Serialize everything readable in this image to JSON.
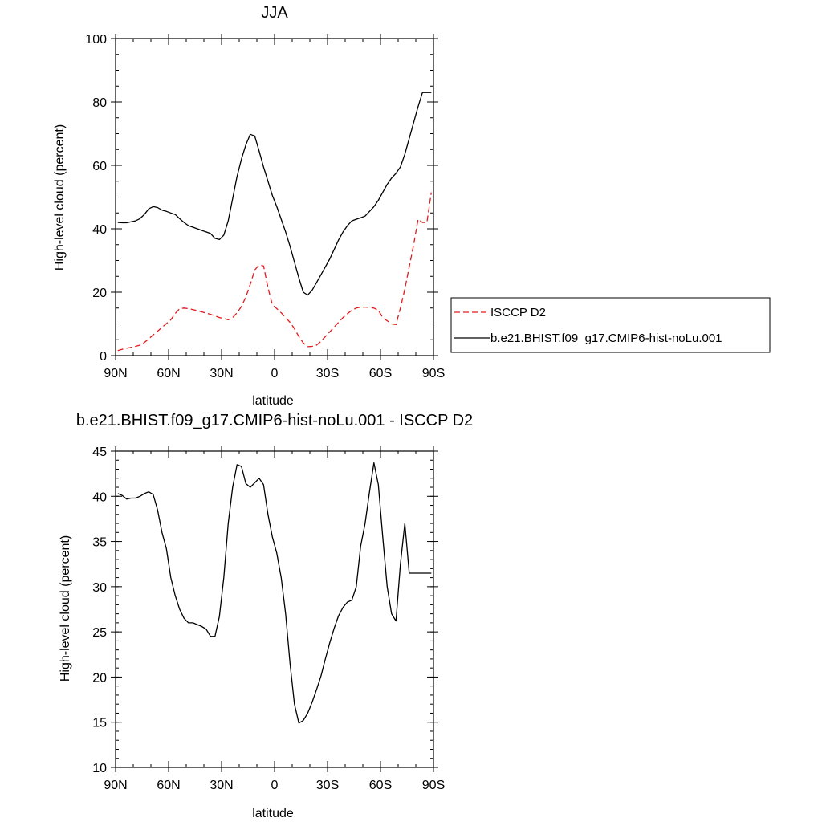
{
  "chart_data": [
    {
      "type": "line",
      "title": "JJA",
      "xlabel": "latitude",
      "ylabel": "High-level cloud (percent)",
      "xlim": [
        90,
        -90
      ],
      "ylim": [
        0,
        100
      ],
      "x_ticks": [
        90,
        60,
        30,
        0,
        -30,
        -60,
        -90
      ],
      "x_tick_labels": [
        "90N",
        "60N",
        "30N",
        "0",
        "30S",
        "60S",
        "90S"
      ],
      "y_ticks": [
        0,
        20,
        40,
        60,
        80,
        100
      ],
      "y_tick_labels": [
        "0",
        "20",
        "40",
        "60",
        "80",
        "100"
      ],
      "legend_position": "right",
      "series": [
        {
          "name": "ISCCP D2",
          "color": "#e41a1c",
          "dash": "dashed",
          "x": [
            88.75,
            86.25,
            83.75,
            81.25,
            78.75,
            76.25,
            73.75,
            71.25,
            68.75,
            66.25,
            63.75,
            61.25,
            58.75,
            56.25,
            53.75,
            51.25,
            48.75,
            46.25,
            43.75,
            41.25,
            38.75,
            36.25,
            33.75,
            31.25,
            28.75,
            26.25,
            23.75,
            21.25,
            18.75,
            16.25,
            13.75,
            11.25,
            8.75,
            6.25,
            3.75,
            1.25,
            -1.25,
            -3.75,
            -6.25,
            -8.75,
            -11.25,
            -13.75,
            -16.25,
            -18.75,
            -21.25,
            -23.75,
            -26.25,
            -28.75,
            -31.25,
            -33.75,
            -36.25,
            -38.75,
            -41.25,
            -43.75,
            -46.25,
            -48.75,
            -51.25,
            -53.75,
            -56.25,
            -58.75,
            -61.25,
            -63.75,
            -66.25,
            -68.75,
            -71.25,
            -73.75,
            -76.25,
            -78.75,
            -81.25,
            -83.75,
            -86.25,
            -88.75
          ],
          "values": [
            1.6,
            2.0,
            2.3,
            2.6,
            2.9,
            3.3,
            4.1,
            5.3,
            6.5,
            7.7,
            8.9,
            10.1,
            11.3,
            13.3,
            14.8,
            15.0,
            14.8,
            14.5,
            14.2,
            13.8,
            13.4,
            13.0,
            12.5,
            12.0,
            11.7,
            11.3,
            12.0,
            13.5,
            15.5,
            18.5,
            22.5,
            27.0,
            28.6,
            28.3,
            21.5,
            16.0,
            14.8,
            13.5,
            12.0,
            10.5,
            8.5,
            6.0,
            4.0,
            2.8,
            2.9,
            3.3,
            4.5,
            6.0,
            7.5,
            9.0,
            10.5,
            12.0,
            13.2,
            14.3,
            15.0,
            15.3,
            15.3,
            15.2,
            15.0,
            14.3,
            12.0,
            11.0,
            10.0,
            9.8,
            15.0,
            21.0,
            28.0,
            35.0,
            43.0,
            42.0,
            42.0,
            51.5
          ]
        },
        {
          "name": "b.e21.BHIST.f09_g17.CMIP6-hist-noLu.001",
          "color": "#000000",
          "dash": "solid",
          "x": [
            88.75,
            86.25,
            83.75,
            81.25,
            78.75,
            76.25,
            73.75,
            71.25,
            68.75,
            66.25,
            63.75,
            61.25,
            58.75,
            56.25,
            53.75,
            51.25,
            48.75,
            46.25,
            43.75,
            41.25,
            38.75,
            36.25,
            33.75,
            31.25,
            28.75,
            26.25,
            23.75,
            21.25,
            18.75,
            16.25,
            13.75,
            11.25,
            8.75,
            6.25,
            3.75,
            1.25,
            -1.25,
            -3.75,
            -6.25,
            -8.75,
            -11.25,
            -13.75,
            -16.25,
            -18.75,
            -21.25,
            -23.75,
            -26.25,
            -28.75,
            -31.25,
            -33.75,
            -36.25,
            -38.75,
            -41.25,
            -43.75,
            -46.25,
            -48.75,
            -51.25,
            -53.75,
            -56.25,
            -58.75,
            -61.25,
            -63.75,
            -66.25,
            -68.75,
            -71.25,
            -73.75,
            -76.25,
            -78.75,
            -81.25,
            -83.75,
            -86.25,
            -88.75
          ],
          "values": [
            42.0,
            41.9,
            41.9,
            42.2,
            42.5,
            43.2,
            44.5,
            46.3,
            47.0,
            46.7,
            45.9,
            45.5,
            45.0,
            44.5,
            43.2,
            42.0,
            41.0,
            40.5,
            40.0,
            39.5,
            39.0,
            38.5,
            37.0,
            36.6,
            38.0,
            42.5,
            49.5,
            56.5,
            62.0,
            66.5,
            69.8,
            69.3,
            64.5,
            59.5,
            55.0,
            50.5,
            47.0,
            43.0,
            39.0,
            34.5,
            29.5,
            24.5,
            20.0,
            19.1,
            20.6,
            23.0,
            25.5,
            28.0,
            30.5,
            33.5,
            36.5,
            39.0,
            41.0,
            42.5,
            43.0,
            43.5,
            44.0,
            45.5,
            47.0,
            49.0,
            51.5,
            54.0,
            56.0,
            57.5,
            59.5,
            63.5,
            68.5,
            73.5,
            78.5,
            83.0,
            83.0,
            83.0
          ]
        }
      ]
    },
    {
      "type": "line",
      "title": "b.e21.BHIST.f09_g17.CMIP6-hist-noLu.001 - ISCCP D2",
      "xlabel": "latitude",
      "ylabel": "High-level cloud (percent)",
      "xlim": [
        90,
        -90
      ],
      "ylim": [
        10,
        45
      ],
      "x_ticks": [
        90,
        60,
        30,
        0,
        -30,
        -60,
        -90
      ],
      "x_tick_labels": [
        "90N",
        "60N",
        "30N",
        "0",
        "30S",
        "60S",
        "90S"
      ],
      "y_ticks": [
        10,
        15,
        20,
        25,
        30,
        35,
        40,
        45
      ],
      "y_tick_labels": [
        "10",
        "15",
        "20",
        "25",
        "30",
        "35",
        "40",
        "45"
      ],
      "series": [
        {
          "color": "#000000",
          "dash": "solid",
          "x": [
            88.75,
            86.25,
            83.75,
            81.25,
            78.75,
            76.25,
            73.75,
            71.25,
            68.75,
            66.25,
            63.75,
            61.25,
            58.75,
            56.25,
            53.75,
            51.25,
            48.75,
            46.25,
            43.75,
            41.25,
            38.75,
            36.25,
            33.75,
            31.25,
            28.75,
            26.25,
            23.75,
            21.25,
            18.75,
            16.25,
            13.75,
            11.25,
            8.75,
            6.25,
            3.75,
            1.25,
            -1.25,
            -3.75,
            -6.25,
            -8.75,
            -11.25,
            -13.75,
            -16.25,
            -18.75,
            -21.25,
            -23.75,
            -26.25,
            -28.75,
            -31.25,
            -33.75,
            -36.25,
            -38.75,
            -41.25,
            -43.75,
            -46.25,
            -48.75,
            -51.25,
            -53.75,
            -56.25,
            -58.75,
            -61.25,
            -63.75,
            -66.25,
            -68.75,
            -71.25,
            -73.75,
            -76.25,
            -78.75,
            -81.25,
            -83.75,
            -86.25,
            -88.75
          ],
          "values": [
            40.3,
            40.1,
            39.7,
            39.8,
            39.8,
            40.0,
            40.3,
            40.5,
            40.2,
            38.5,
            36.0,
            34.2,
            31.0,
            29.0,
            27.5,
            26.5,
            26.0,
            26.0,
            25.8,
            25.6,
            25.3,
            24.5,
            24.5,
            26.7,
            31.0,
            37.0,
            41.0,
            43.5,
            43.3,
            41.4,
            41.0,
            41.5,
            42.0,
            41.3,
            38.0,
            35.5,
            33.7,
            31.0,
            27.0,
            21.5,
            17.0,
            14.9,
            15.2,
            16.0,
            17.2,
            18.6,
            20.1,
            22.0,
            23.8,
            25.4,
            26.8,
            27.7,
            28.3,
            28.5,
            30.0,
            34.5,
            37.0,
            40.5,
            43.7,
            41.3,
            35.5,
            30.0,
            27.0,
            26.2,
            32.5,
            37.0,
            31.5,
            31.5,
            31.5,
            31.5,
            31.5,
            31.5
          ]
        }
      ]
    }
  ]
}
